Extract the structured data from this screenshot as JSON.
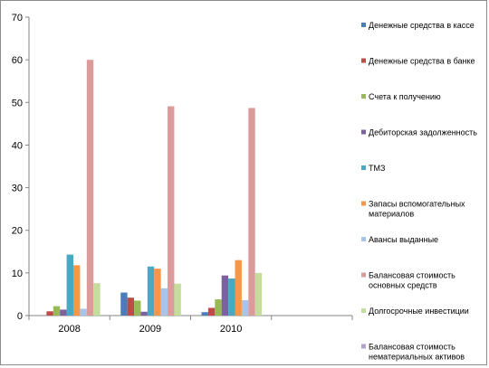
{
  "chart_data": {
    "type": "bar",
    "categories": [
      "2008",
      "2009",
      "2010"
    ],
    "ylim": [
      0,
      70
    ],
    "yticks": [
      0,
      10,
      20,
      30,
      40,
      50,
      60,
      70
    ],
    "grid": false,
    "legend_position": "right",
    "series": [
      {
        "name": "Денежные средства в кассе",
        "color": "#4a7ebb",
        "values": [
          0,
          5.4,
          0.8
        ]
      },
      {
        "name": "Денежные средства в банке",
        "color": "#be4b48",
        "values": [
          1.0,
          4.2,
          1.8
        ]
      },
      {
        "name": "Счета к получению",
        "color": "#98b954",
        "values": [
          2.2,
          3.5,
          3.8
        ]
      },
      {
        "name": "Дебиторская задолженность",
        "color": "#7d60a0",
        "values": [
          1.4,
          0.9,
          9.4
        ]
      },
      {
        "name": "ТМЗ",
        "color": "#46aac5",
        "values": [
          14.3,
          11.5,
          8.7
        ]
      },
      {
        "name": "Запасы вспомогательных материалов",
        "legend_lines": [
          "Запасы вспомогательных",
          "материалов"
        ],
        "color": "#f79646",
        "values": [
          11.8,
          11.0,
          13.0
        ]
      },
      {
        "name": "Авансы выданные",
        "color": "#a9c4eb",
        "values": [
          1.6,
          6.4,
          3.6
        ]
      },
      {
        "name": "Балансовая стоимость основных средств",
        "legend_lines": [
          "Балансовая стоимость",
          "основных средств"
        ],
        "color": "#dc9b9b",
        "values": [
          60.0,
          49.1,
          48.7
        ]
      },
      {
        "name": "Долгосрочные инвестиции",
        "color": "#c4dd9c",
        "values": [
          7.6,
          7.5,
          10.0
        ]
      },
      {
        "name": "Балансовая стоимость нематериальных активов",
        "legend_lines": [
          "Балансовая стоимость",
          "нематериальных активов"
        ],
        "color": "#b2a3cb",
        "values": [
          0,
          0,
          0
        ]
      }
    ]
  }
}
